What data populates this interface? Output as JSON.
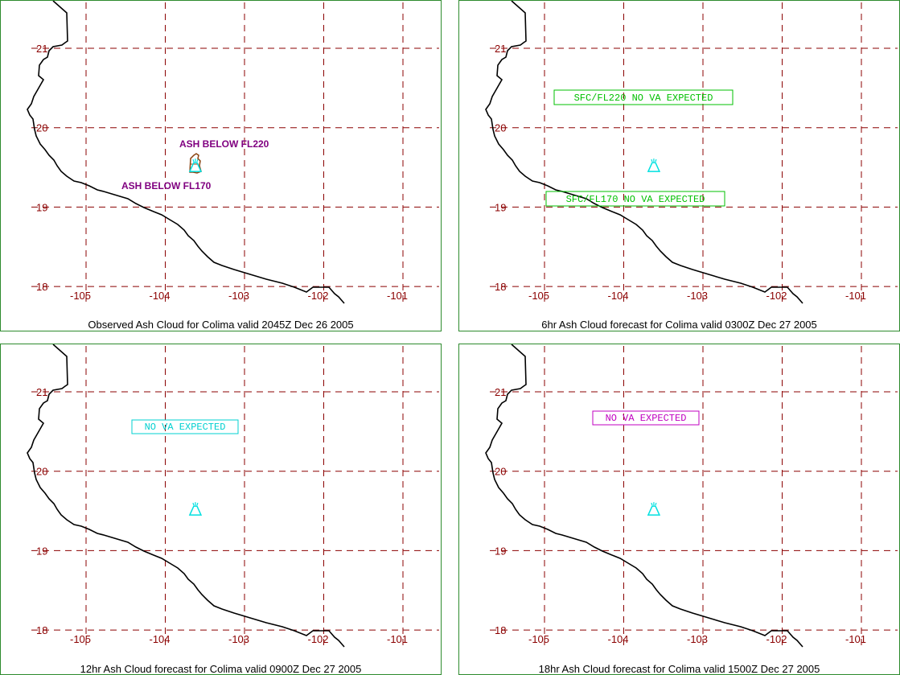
{
  "axes": {
    "lon_ticks": [
      "-105",
      "-104",
      "-103",
      "-102",
      "-101"
    ],
    "lat_ticks": [
      "21",
      "20",
      "19",
      "18"
    ]
  },
  "colors": {
    "grid": "#8b0000",
    "border": "#2e8b2e",
    "coast": "#000000",
    "volcano": "#00e0e0",
    "purple": "#800080",
    "green": "#00c000",
    "cyan": "#00d0d0",
    "magenta": "#c000c0"
  },
  "volcano": {
    "lon": -103.62,
    "lat": 19.51,
    "icon": "volcano-icon"
  },
  "panels": [
    {
      "caption": "Observed Ash Cloud for Colima valid 2045Z Dec 26 2005",
      "labels": [
        {
          "text": "ASH BELOW FL220",
          "style": "plain"
        },
        {
          "text": "ASH BELOW FL170",
          "style": "plain"
        }
      ]
    },
    {
      "caption": "6hr Ash Cloud forecast for Colima valid 0300Z Dec 27 2005",
      "labels": [
        {
          "text": "SFC/FL220 NO VA EXPECTED",
          "style": "boxed"
        },
        {
          "text": "SFC/FL170 NO VA EXPECTED",
          "style": "boxed"
        }
      ]
    },
    {
      "caption": "12hr Ash Cloud forecast for Colima valid 0900Z Dec 27 2005",
      "labels": [
        {
          "text": "NO VA EXPECTED",
          "style": "boxed"
        }
      ]
    },
    {
      "caption": "18hr Ash Cloud forecast for Colima valid 1500Z Dec 27 2005",
      "labels": [
        {
          "text": "NO VA EXPECTED",
          "style": "boxed"
        }
      ]
    }
  ]
}
